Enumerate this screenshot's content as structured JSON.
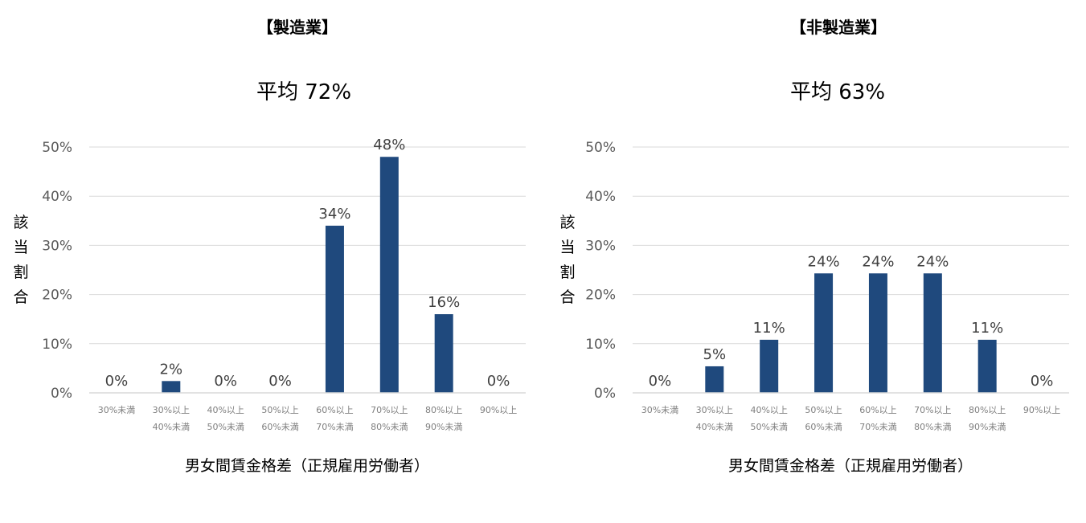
{
  "chart_data": [
    {
      "type": "bar",
      "title": "【製造業】",
      "subtitle": "平均 72%",
      "ylabel": "該当割合",
      "xlabel": "男女間賃金格差（正規雇用労働者）",
      "ylim": [
        0,
        50
      ],
      "yticks": [
        "0%",
        "10%",
        "20%",
        "30%",
        "40%",
        "50%"
      ],
      "grid": true,
      "bar_color": "#1f497d",
      "categories": [
        [
          "30%未満"
        ],
        [
          "30%以上",
          "40%未満"
        ],
        [
          "40%以上",
          "50%未満"
        ],
        [
          "50%以上",
          "60%未満"
        ],
        [
          "60%以上",
          "70%未満"
        ],
        [
          "70%以上",
          "80%未満"
        ],
        [
          "80%以上",
          "90%未満"
        ],
        [
          "90%以上"
        ]
      ],
      "values": [
        0,
        2.4,
        0,
        0,
        34,
        48,
        16,
        0
      ],
      "value_labels": [
        "0%",
        "2%",
        "0%",
        "0%",
        "34%",
        "48%",
        "16%",
        "0%"
      ]
    },
    {
      "type": "bar",
      "title": "【非製造業】",
      "subtitle": "平均 63%",
      "ylabel": "該当割合",
      "xlabel": "男女間賃金格差（正規雇用労働者）",
      "ylim": [
        0,
        50
      ],
      "yticks": [
        "0%",
        "10%",
        "20%",
        "30%",
        "40%",
        "50%"
      ],
      "grid": true,
      "bar_color": "#1f497d",
      "categories": [
        [
          "30%未満"
        ],
        [
          "30%以上",
          "40%未満"
        ],
        [
          "40%以上",
          "50%未満"
        ],
        [
          "50%以上",
          "60%未満"
        ],
        [
          "60%以上",
          "70%未満"
        ],
        [
          "70%以上",
          "80%未満"
        ],
        [
          "80%以上",
          "90%未満"
        ],
        [
          "90%以上"
        ]
      ],
      "values": [
        0,
        5.4,
        10.8,
        24.3,
        24.3,
        24.3,
        10.8,
        0
      ],
      "value_labels": [
        "0%",
        "5%",
        "11%",
        "24%",
        "24%",
        "24%",
        "11%",
        "0%"
      ]
    }
  ]
}
